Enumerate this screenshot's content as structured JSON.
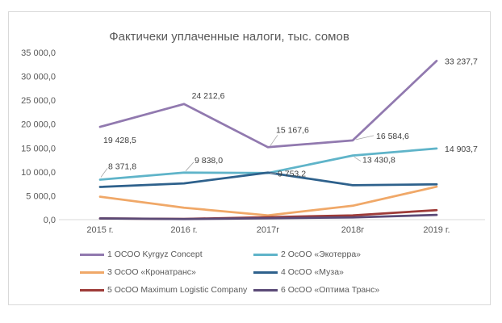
{
  "chart_data": {
    "type": "line",
    "title": "Фактичеки уплаченные налоги, тыс. сомов",
    "categories": [
      "2015 г.",
      "2016 г.",
      "2017г",
      "2018г",
      "2019 г."
    ],
    "y_axis": {
      "tick_labels": [
        "0,0",
        "5 000,0",
        "10 000,0",
        "15 000,0",
        "20 000,0",
        "25 000,0",
        "30 000,0",
        "35 000,0"
      ],
      "tick_values": [
        0,
        5000,
        10000,
        15000,
        20000,
        25000,
        30000,
        35000
      ],
      "range": [
        0,
        35000
      ],
      "grid": "off"
    },
    "legend_position": "bottom",
    "series": [
      {
        "name": "1 ОСОО Kyrgyz Concept",
        "color": "#9179AF",
        "values": [
          19428.5,
          24212.6,
          15167.6,
          16584.6,
          33237.7
        ],
        "data_labels": [
          "19 428,5",
          "24 212,6",
          "15 167,6",
          "16 584,6",
          "33 237,7"
        ]
      },
      {
        "name": "2 ОсОО «Экотерра»",
        "color": "#5FB4C9",
        "values": [
          8371.8,
          9838.0,
          9753.2,
          13430.8,
          14903.7
        ],
        "data_labels": [
          "8 371,8",
          "9 838,0",
          "9 753,2",
          "13 430,8",
          "14 903,7"
        ]
      },
      {
        "name": "3 ОсОО «Кронатранс»",
        "color": "#F0A868",
        "values": [
          4800,
          2500,
          900,
          2900,
          6900
        ],
        "data_labels": null
      },
      {
        "name": "4 ОсОО «Муза»",
        "color": "#2E618C",
        "values": [
          6850,
          7600,
          9850,
          7200,
          7400
        ],
        "data_labels": null
      },
      {
        "name": "5 ОсОО Maximum Logistic Company",
        "color": "#9E3B38",
        "values": [
          250,
          150,
          500,
          900,
          2000
        ],
        "data_labels": null
      },
      {
        "name": "6 ОсОО «Оптима Транс»",
        "color": "#5B4A77",
        "values": [
          250,
          120,
          300,
          450,
          1000
        ],
        "data_labels": null
      }
    ]
  },
  "colors": {
    "frame_border": "#d9d9d9",
    "axis_line": "#d9d9d9",
    "tick_text": "#595959",
    "data_label_text": "#404040",
    "leader_line": "#a6a6a6",
    "title_text": "#595959"
  }
}
